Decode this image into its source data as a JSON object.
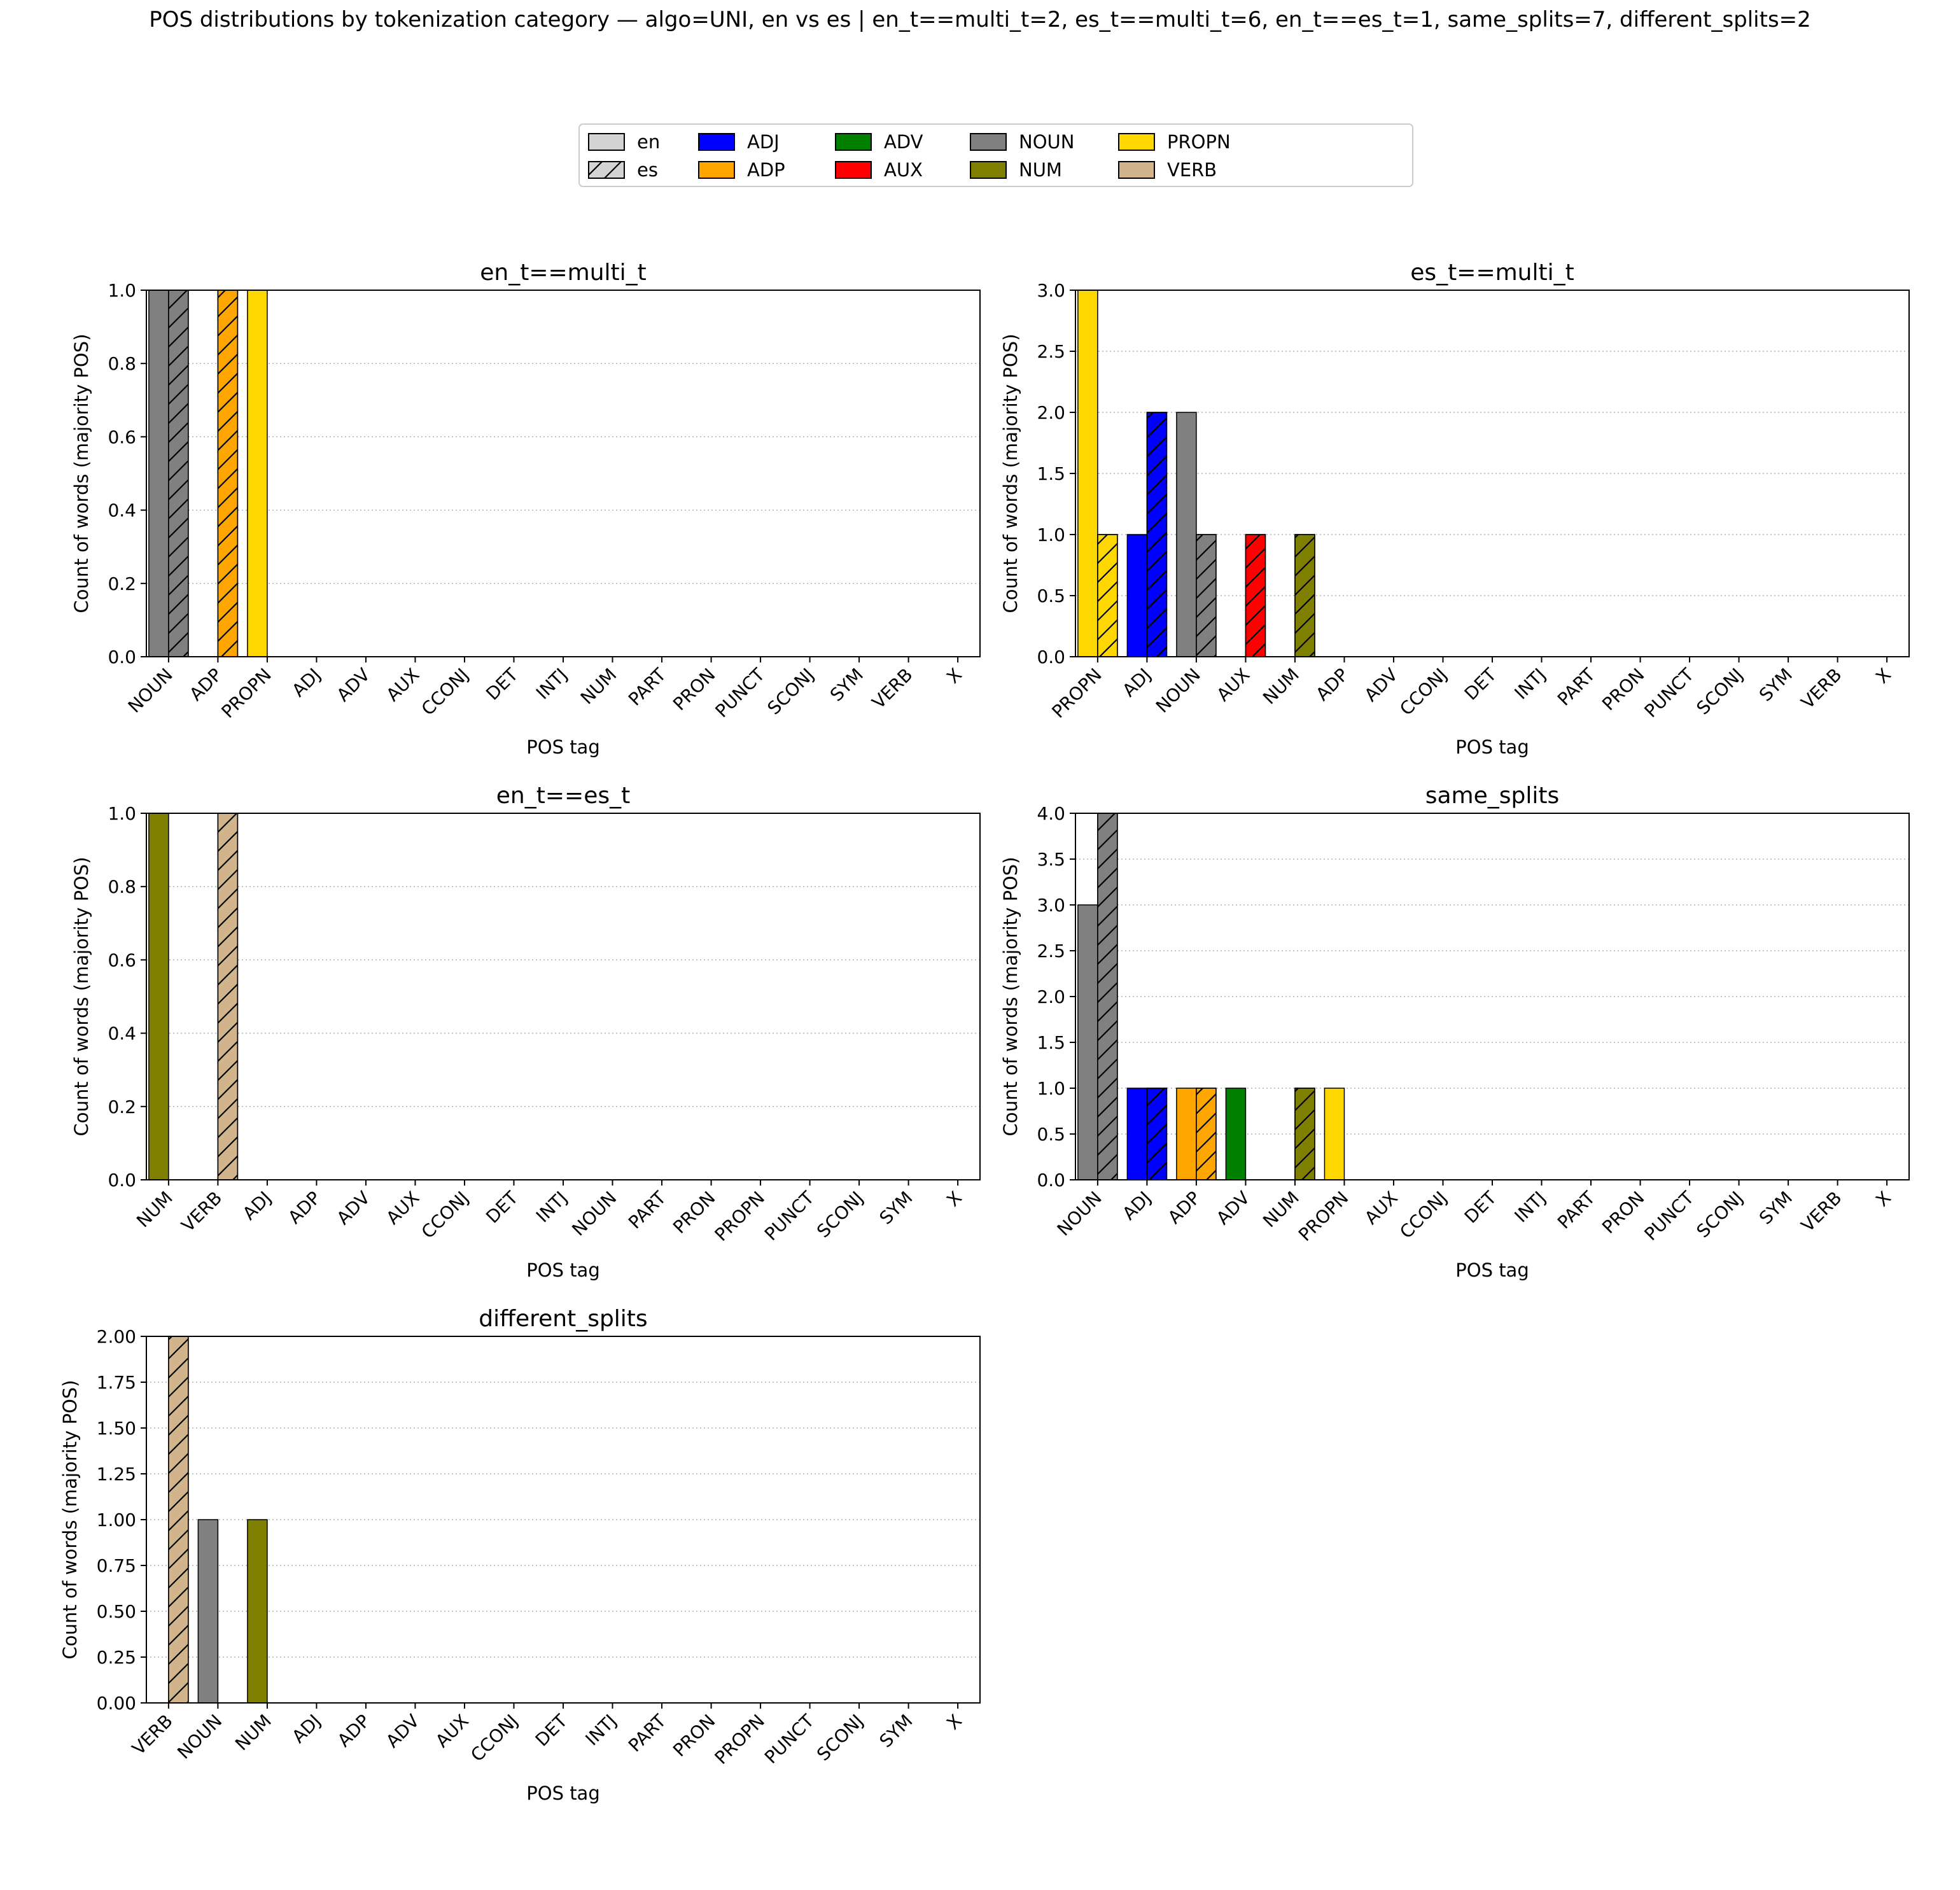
{
  "figure_title": "POS distributions by tokenization category — algo=UNI, en vs es | en_t==multi_t=2, es_t==multi_t=6, en_t==es_t=1, same_splits=7, different_splits=2",
  "legend": {
    "languages": [
      {
        "label": "en",
        "hatch": false
      },
      {
        "label": "es",
        "hatch": true
      }
    ],
    "pos": [
      {
        "label": "ADJ",
        "color": "#0000ff"
      },
      {
        "label": "ADP",
        "color": "#ffa500"
      },
      {
        "label": "ADV",
        "color": "#008000"
      },
      {
        "label": "AUX",
        "color": "#ff0000"
      },
      {
        "label": "NOUN",
        "color": "#808080"
      },
      {
        "label": "NUM",
        "color": "#808000"
      },
      {
        "label": "PROPN",
        "color": "#ffd700"
      },
      {
        "label": "VERB",
        "color": "#d2b48c"
      }
    ]
  },
  "colors": {
    "ADJ": "#0000ff",
    "ADP": "#ffa500",
    "ADV": "#008000",
    "AUX": "#ff0000",
    "NOUN": "#808080",
    "NUM": "#808000",
    "PROPN": "#ffd700",
    "VERB": "#d2b48c"
  },
  "chart_data": [
    {
      "type": "bar",
      "title": "en_t==multi_t",
      "xlabel": "POS tag",
      "ylabel": "Count of words (majority POS)",
      "ylim": [
        0,
        1.0
      ],
      "yticks": [
        "0.0",
        "0.2",
        "0.4",
        "0.6",
        "0.8",
        "1.0"
      ],
      "grid": "y-dotted",
      "categories": [
        "NOUN",
        "ADP",
        "PROPN",
        "ADJ",
        "ADV",
        "AUX",
        "CCONJ",
        "DET",
        "INTJ",
        "NUM",
        "PART",
        "PRON",
        "PUNCT",
        "SCONJ",
        "SYM",
        "VERB",
        "X"
      ],
      "series": [
        {
          "name": "en",
          "values": [
            1,
            0,
            1,
            0,
            0,
            0,
            0,
            0,
            0,
            0,
            0,
            0,
            0,
            0,
            0,
            0,
            0
          ]
        },
        {
          "name": "es",
          "values": [
            1,
            1,
            0,
            0,
            0,
            0,
            0,
            0,
            0,
            0,
            0,
            0,
            0,
            0,
            0,
            0,
            0
          ]
        }
      ]
    },
    {
      "type": "bar",
      "title": "es_t==multi_t",
      "xlabel": "POS tag",
      "ylabel": "Count of words (majority POS)",
      "ylim": [
        0,
        3.0
      ],
      "yticks": [
        "0.0",
        "0.5",
        "1.0",
        "1.5",
        "2.0",
        "2.5",
        "3.0"
      ],
      "grid": "y-dotted",
      "categories": [
        "PROPN",
        "ADJ",
        "NOUN",
        "AUX",
        "NUM",
        "ADP",
        "ADV",
        "CCONJ",
        "DET",
        "INTJ",
        "PART",
        "PRON",
        "PUNCT",
        "SCONJ",
        "SYM",
        "VERB",
        "X"
      ],
      "series": [
        {
          "name": "en",
          "values": [
            3,
            1,
            2,
            0,
            0,
            0,
            0,
            0,
            0,
            0,
            0,
            0,
            0,
            0,
            0,
            0,
            0
          ]
        },
        {
          "name": "es",
          "values": [
            1,
            2,
            1,
            1,
            1,
            0,
            0,
            0,
            0,
            0,
            0,
            0,
            0,
            0,
            0,
            0,
            0
          ]
        }
      ]
    },
    {
      "type": "bar",
      "title": "en_t==es_t",
      "xlabel": "POS tag",
      "ylabel": "Count of words (majority POS)",
      "ylim": [
        0,
        1.0
      ],
      "yticks": [
        "0.0",
        "0.2",
        "0.4",
        "0.6",
        "0.8",
        "1.0"
      ],
      "grid": "y-dotted",
      "categories": [
        "NUM",
        "VERB",
        "ADJ",
        "ADP",
        "ADV",
        "AUX",
        "CCONJ",
        "DET",
        "INTJ",
        "NOUN",
        "PART",
        "PRON",
        "PROPN",
        "PUNCT",
        "SCONJ",
        "SYM",
        "X"
      ],
      "series": [
        {
          "name": "en",
          "values": [
            1,
            0,
            0,
            0,
            0,
            0,
            0,
            0,
            0,
            0,
            0,
            0,
            0,
            0,
            0,
            0,
            0
          ]
        },
        {
          "name": "es",
          "values": [
            0,
            1,
            0,
            0,
            0,
            0,
            0,
            0,
            0,
            0,
            0,
            0,
            0,
            0,
            0,
            0,
            0
          ]
        }
      ]
    },
    {
      "type": "bar",
      "title": "same_splits",
      "xlabel": "POS tag",
      "ylabel": "Count of words (majority POS)",
      "ylim": [
        0,
        4.0
      ],
      "yticks": [
        "0.0",
        "0.5",
        "1.0",
        "1.5",
        "2.0",
        "2.5",
        "3.0",
        "3.5",
        "4.0"
      ],
      "grid": "y-dotted",
      "categories": [
        "NOUN",
        "ADJ",
        "ADP",
        "ADV",
        "NUM",
        "PROPN",
        "AUX",
        "CCONJ",
        "DET",
        "INTJ",
        "PART",
        "PRON",
        "PUNCT",
        "SCONJ",
        "SYM",
        "VERB",
        "X"
      ],
      "series": [
        {
          "name": "en",
          "values": [
            3,
            1,
            1,
            1,
            0,
            1,
            0,
            0,
            0,
            0,
            0,
            0,
            0,
            0,
            0,
            0,
            0
          ]
        },
        {
          "name": "es",
          "values": [
            4,
            1,
            1,
            0,
            1,
            0,
            0,
            0,
            0,
            0,
            0,
            0,
            0,
            0,
            0,
            0,
            0
          ]
        }
      ]
    },
    {
      "type": "bar",
      "title": "different_splits",
      "xlabel": "POS tag",
      "ylabel": "Count of words (majority POS)",
      "ylim": [
        0,
        2.0
      ],
      "yticks": [
        "0.00",
        "0.25",
        "0.50",
        "0.75",
        "1.00",
        "1.25",
        "1.50",
        "1.75",
        "2.00"
      ],
      "grid": "y-dotted",
      "categories": [
        "VERB",
        "NOUN",
        "NUM",
        "ADJ",
        "ADP",
        "ADV",
        "AUX",
        "CCONJ",
        "DET",
        "INTJ",
        "PART",
        "PRON",
        "PROPN",
        "PUNCT",
        "SCONJ",
        "SYM",
        "X"
      ],
      "series": [
        {
          "name": "en",
          "values": [
            0,
            1,
            1,
            0,
            0,
            0,
            0,
            0,
            0,
            0,
            0,
            0,
            0,
            0,
            0,
            0,
            0
          ]
        },
        {
          "name": "es",
          "values": [
            2,
            0,
            0,
            0,
            0,
            0,
            0,
            0,
            0,
            0,
            0,
            0,
            0,
            0,
            0,
            0,
            0
          ]
        }
      ]
    }
  ]
}
